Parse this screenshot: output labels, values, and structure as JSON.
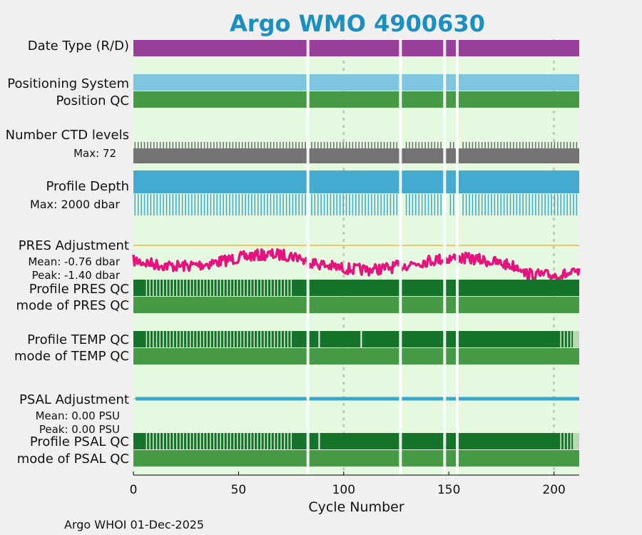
{
  "chart_data": {
    "type": "bar",
    "title": "Argo WMO 4900630",
    "xlabel": "Cycle Number",
    "xlim": [
      0,
      212
    ],
    "xticks": [
      0,
      50,
      100,
      150,
      200
    ],
    "gaps": [
      83,
      127,
      148,
      154
    ],
    "dashed_cycles": [
      100,
      200
    ],
    "rows": {
      "date_type": "Date Type (R/D)",
      "positioning": "Positioning System",
      "position_qc": "Position QC",
      "ctd_levels": "Number CTD levels",
      "ctd_max": "Max: 72",
      "profile_depth": "Profile Depth",
      "depth_max": "Max: 2000 dbar",
      "pres_adj": "PRES Adjustment",
      "pres_mean": "Mean: -0.76 dbar",
      "pres_peak": "Peak: -1.40 dbar",
      "profile_pres_qc": "Profile PRES QC",
      "mode_pres_qc": "mode of PRES QC",
      "profile_temp_qc": "Profile TEMP QC",
      "mode_temp_qc": "mode of TEMP QC",
      "psal_adj": "PSAL Adjustment",
      "psal_mean": "Mean: 0.00 PSU",
      "psal_peak": "Peak: 0.00 PSU",
      "profile_psal_qc": "Profile PSAL QC",
      "mode_psal_qc": "mode of PSAL QC"
    },
    "pres_adjustment_mean": -0.76,
    "pres_adjustment_peak": -1.4,
    "psal_adjustment_mean": 0.0,
    "psal_adjustment_peak": 0.0
  },
  "footer": "Argo WHOI 01-Dec-2025",
  "colors": {
    "background": "#f0f0f0",
    "plot_bg": "#e4f9e0",
    "title": "#1a8fc0",
    "date_type": "#993f99",
    "positioning": "#7ec6e0",
    "qc_mode": "#469a46",
    "qc_profile": "#16742a",
    "ctd": "#737373",
    "depth": "#44aad0",
    "pres_line": "#e8127e",
    "psal_line": "#3aa6cc",
    "zero_line": "#f5b53a",
    "pres_text": "#e0127e",
    "psal_text": "#1a8fc0"
  }
}
